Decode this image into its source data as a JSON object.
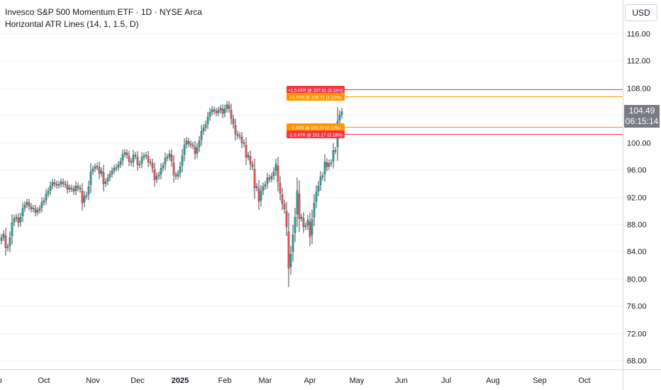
{
  "header": {
    "title": "Invesco S&P 500 Momentum ETF · 1D · NYSE Arca",
    "indicator": "Horizontal ATR Lines (14, 1, 1.5, D)",
    "currency": "USD"
  },
  "last_price": {
    "value": "104.49",
    "countdown": "06:15:14"
  },
  "colors": {
    "up": "#26a69a",
    "down": "#ef5350",
    "atr1": "#ff9800",
    "atr15": "#f23645",
    "price_box": "#787b86"
  },
  "chart_data": {
    "type": "candlestick",
    "title": "Invesco S&P 500 Momentum ETF · 1D · NYSE Arca",
    "ylim": [
      64,
      120
    ],
    "y_ticks": [
      "68.00",
      "72.00",
      "76.00",
      "80.00",
      "84.00",
      "88.00",
      "92.00",
      "96.00",
      "100.00",
      "104.00",
      "108.00",
      "112.00",
      "116.00"
    ],
    "x_ticks": [
      {
        "label": "Sep",
        "bar": -3
      },
      {
        "label": "Oct",
        "bar": 20
      },
      {
        "label": "Nov",
        "bar": 43
      },
      {
        "label": "Dec",
        "bar": 64
      },
      {
        "label": "2025",
        "bar": 84
      },
      {
        "label": "Feb",
        "bar": 105
      },
      {
        "label": "Mar",
        "bar": 124
      },
      {
        "label": "Apr",
        "bar": 145
      },
      {
        "label": "May",
        "bar": 167
      },
      {
        "label": "Jun",
        "bar": 188
      },
      {
        "label": "Jul",
        "bar": 209
      },
      {
        "label": "Aug",
        "bar": 231
      },
      {
        "label": "Sep",
        "bar": 253
      },
      {
        "label": "Oct",
        "bar": 274
      }
    ],
    "closes": [
      86.0,
      86.5,
      84.5,
      84.6,
      86.0,
      88.2,
      88.8,
      89.0,
      88.2,
      89.0,
      90.3,
      90.8,
      91.2,
      90.6,
      90.2,
      90.3,
      89.7,
      90.0,
      90.3,
      91.2,
      91.4,
      92.4,
      92.8,
      93.6,
      94.1,
      93.9,
      93.7,
      93.8,
      94.2,
      93.9,
      93.8,
      93.1,
      93.3,
      93.2,
      92.8,
      93.6,
      93.3,
      93.1,
      91.1,
      92.1,
      92.2,
      93.5,
      95.7,
      96.1,
      96.4,
      96.5,
      95.4,
      95.8,
      93.9,
      94.2,
      94.8,
      95.3,
      95.8,
      96.2,
      96.3,
      96.7,
      97.2,
      98.2,
      98.5,
      98.1,
      97.2,
      97.0,
      98.1,
      98.0,
      96.7,
      96.8,
      97.8,
      98.0,
      98.1,
      97.1,
      97.0,
      96.2,
      94.5,
      95.0,
      95.2,
      96.2,
      96.6,
      97.7,
      97.8,
      98.3,
      97.2,
      95.2,
      95.0,
      95.4,
      96.4,
      98.0,
      99.6,
      100.2,
      99.8,
      99.6,
      99.5,
      98.3,
      99.2,
      100.2,
      101.6,
      102.1,
      102.6,
      103.7,
      104.4,
      104.8,
      104.6,
      104.3,
      104.7,
      105.0,
      104.2,
      104.9,
      105.5,
      104.9,
      103.5,
      102.7,
      101.2,
      101.0,
      100.9,
      99.9,
      99.8,
      97.8,
      98.1,
      96.8,
      96.4,
      93.3,
      93.5,
      91.3,
      92.8,
      93.5,
      93.8,
      94.8,
      94.6,
      95.0,
      95.7,
      96.8,
      94.2,
      92.5,
      91.0,
      90.2,
      87.6,
      81.5,
      83.6,
      86.4,
      89.0,
      92.9,
      88.8,
      89.0,
      87.6,
      87.7,
      88.6,
      86.1,
      88.7,
      91.1,
      92.7,
      93.6,
      94.9,
      95.1,
      97.1,
      96.4,
      96.9,
      97.0,
      98.8,
      98.8,
      103.1,
      104.0,
      104.5
    ],
    "atr_levels": [
      {
        "label": "+1.5 ATR @ 107.81 (3.18%)",
        "value": 107.81,
        "color": "#f23645"
      },
      {
        "label": "+1 ATR @ 106.71 (2.12%)",
        "value": 106.71,
        "color": "#ff9800"
      },
      {
        "label": "-1 ATR @ 102.27 (2.12%)",
        "value": 102.27,
        "color": "#ff9800"
      },
      {
        "label": "-1.5 ATR @ 101.17 (3.18%)",
        "value": 101.17,
        "color": "#f23645"
      }
    ]
  }
}
